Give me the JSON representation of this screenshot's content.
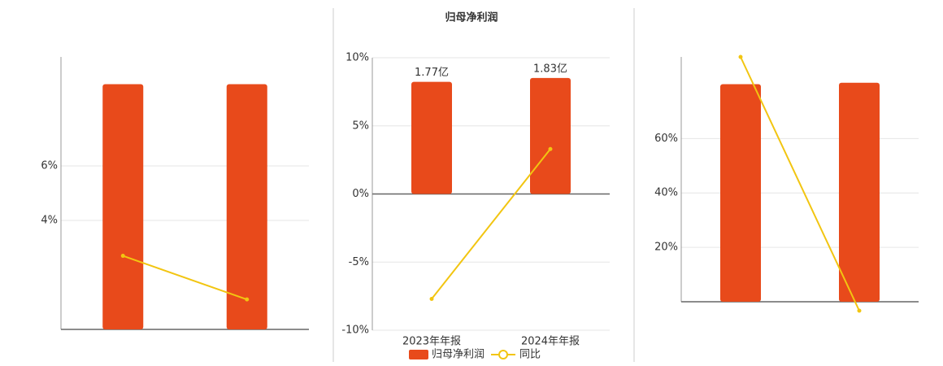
{
  "chart_data": [
    {
      "type": "bar",
      "categories": [
        null,
        null
      ],
      "series": [
        {
          "type": "bar",
          "color": "#e84a1b",
          "values": [
            9,
            9
          ]
        },
        {
          "type": "line",
          "color": "#f2c511",
          "values": [
            2.7,
            1.1
          ]
        }
      ],
      "ylim": [
        0,
        10
      ],
      "yticks": [
        {
          "value": 4,
          "label": "4%"
        },
        {
          "value": 6,
          "label": "6%"
        }
      ],
      "grid": true
    },
    {
      "type": "bar",
      "title": "归母净利润",
      "categories": [
        "2023年年报",
        "2024年年报"
      ],
      "series": [
        {
          "type": "bar",
          "name": "归母净利润",
          "color": "#e84a1b",
          "axis": "y2",
          "values": [
            1.77,
            1.83
          ],
          "value_labels": [
            "1.77亿",
            "1.83亿"
          ]
        },
        {
          "type": "line",
          "name": "同比",
          "color": "#f2c511",
          "values": [
            -7.7,
            3.3
          ]
        }
      ],
      "ylim": [
        -10,
        10
      ],
      "yticks": [
        {
          "value": 10,
          "label": "10%"
        },
        {
          "value": 5,
          "label": "5%"
        },
        {
          "value": 0,
          "label": "0%"
        },
        {
          "value": -5,
          "label": "-5%"
        },
        {
          "value": -10,
          "label": "-10%"
        }
      ],
      "y2lim": [
        -2.15,
        2.15
      ],
      "grid": true,
      "legend": "bottom"
    },
    {
      "type": "bar",
      "categories": [
        null,
        null
      ],
      "series": [
        {
          "type": "bar",
          "color": "#e84a1b",
          "values": [
            80,
            80.5
          ]
        },
        {
          "type": "line",
          "color": "#f2c511",
          "values": [
            90,
            -3.3
          ]
        }
      ],
      "ylim": [
        0,
        90
      ],
      "yticks": [
        {
          "value": 20,
          "label": "20%"
        },
        {
          "value": 40,
          "label": "40%"
        },
        {
          "value": 60,
          "label": "60%"
        }
      ],
      "grid": true
    }
  ]
}
